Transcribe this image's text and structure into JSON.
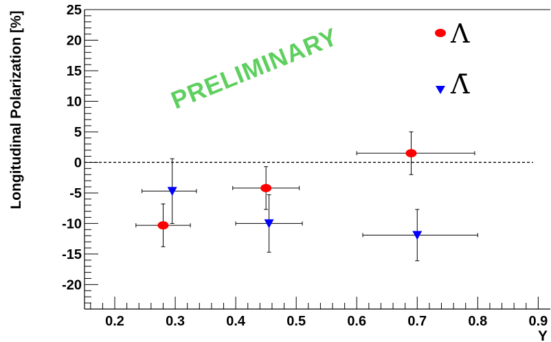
{
  "chart_data": {
    "type": "scatter",
    "title": "",
    "xlabel": "Y",
    "ylabel": "Longitudinal Polarization [%]",
    "xlim": [
      0.15,
      0.92
    ],
    "ylim": [
      -24,
      25
    ],
    "x_ticks": [
      "0.2",
      "0.3",
      "0.4",
      "0.5",
      "0.6",
      "0.7",
      "0.8",
      "0.9"
    ],
    "y_ticks": [
      "25",
      "20",
      "15",
      "10",
      "5",
      "0",
      "-5",
      "-10",
      "-15",
      "-20"
    ],
    "reference_line": {
      "y": 0,
      "style": "dashed"
    },
    "watermark": "PRELIMINARY",
    "legend_position": "top-right",
    "series": [
      {
        "name": "Λ",
        "marker": "circle",
        "color": "#ff0000",
        "points": [
          {
            "x": 0.28,
            "y": -10.3,
            "xerr_low": 0.045,
            "xerr_high": 0.045,
            "yerr": 3.5
          },
          {
            "x": 0.45,
            "y": -4.2,
            "xerr_low": 0.055,
            "xerr_high": 0.055,
            "yerr": 3.5
          },
          {
            "x": 0.69,
            "y": 1.5,
            "xerr_low": 0.09,
            "xerr_high": 0.105,
            "yerr": 3.5
          }
        ]
      },
      {
        "name": "Λ̄",
        "marker": "triangle-down",
        "color": "#0000ff",
        "points": [
          {
            "x": 0.295,
            "y": -4.7,
            "xerr_low": 0.05,
            "xerr_high": 0.04,
            "yerr": 5.3
          },
          {
            "x": 0.455,
            "y": -10.0,
            "xerr_low": 0.055,
            "xerr_high": 0.055,
            "yerr": 4.7
          },
          {
            "x": 0.7,
            "y": -11.9,
            "xerr_low": 0.09,
            "xerr_high": 0.1,
            "yerr": 4.2
          }
        ]
      }
    ]
  }
}
